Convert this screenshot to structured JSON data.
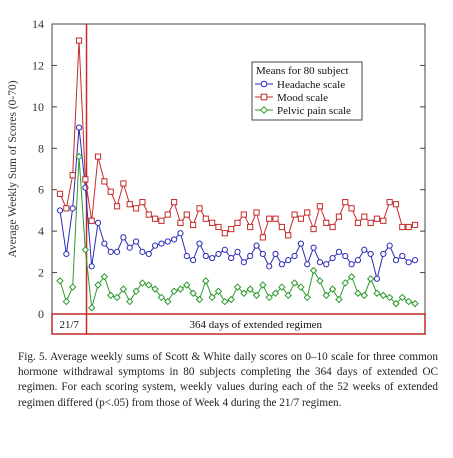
{
  "chart_data": {
    "type": "line",
    "ylabel": "Average Weekly Sum of Scores (0-70)",
    "ylim": [
      0,
      14
    ],
    "yticks": [
      0,
      2,
      4,
      6,
      8,
      10,
      12,
      14
    ],
    "x": [
      0,
      1,
      2,
      3,
      4,
      5,
      6,
      7,
      8,
      9,
      10,
      11,
      12,
      13,
      14,
      15,
      16,
      17,
      18,
      19,
      20,
      21,
      22,
      23,
      24,
      25,
      26,
      27,
      28,
      29,
      30,
      31,
      32,
      33,
      34,
      35,
      36,
      37,
      38,
      39,
      40,
      41,
      42,
      43,
      44,
      45,
      46,
      47,
      48,
      49,
      50,
      51,
      52,
      53,
      54,
      55,
      56
    ],
    "phase_boundary_x": 5,
    "legend": {
      "title": "Means for 80 subject",
      "placement": "top-right"
    },
    "series": [
      {
        "name": "Headache scale",
        "color": "#2b2bb8",
        "marker": "circle",
        "values": [
          5.0,
          2.9,
          5.1,
          9.0,
          6.1,
          2.3,
          4.4,
          3.4,
          3.0,
          3.0,
          3.7,
          3.2,
          3.5,
          3.0,
          2.9,
          3.3,
          3.4,
          3.5,
          3.6,
          3.9,
          2.8,
          2.6,
          3.4,
          2.8,
          2.7,
          2.9,
          3.1,
          2.7,
          3.0,
          2.5,
          2.8,
          3.3,
          2.9,
          2.3,
          2.9,
          2.4,
          2.6,
          2.8,
          3.4,
          2.4,
          3.2,
          2.5,
          2.4,
          2.7,
          3.0,
          2.8,
          2.4,
          2.6,
          3.1,
          2.9,
          1.7,
          2.9,
          3.3,
          2.6,
          2.8,
          2.5,
          2.6
        ]
      },
      {
        "name": "Mood scale",
        "color": "#c42a2a",
        "marker": "square",
        "values": [
          5.8,
          5.1,
          6.7,
          13.2,
          6.5,
          4.5,
          7.6,
          6.4,
          5.9,
          5.2,
          6.3,
          5.3,
          5.1,
          5.4,
          4.8,
          4.6,
          4.5,
          4.8,
          5.4,
          4.4,
          4.8,
          4.3,
          5.1,
          4.6,
          4.4,
          4.2,
          3.9,
          4.1,
          4.4,
          4.8,
          4.2,
          4.9,
          3.7,
          4.6,
          4.6,
          4.2,
          3.8,
          4.8,
          4.6,
          4.9,
          4.1,
          5.2,
          4.4,
          4.2,
          4.7,
          5.4,
          5.1,
          4.4,
          4.7,
          4.4,
          4.6,
          4.5,
          5.4,
          5.3,
          4.2,
          4.2,
          4.3
        ]
      },
      {
        "name": "Pelvic pain scale",
        "color": "#2e9a2e",
        "marker": "diamond",
        "values": [
          1.6,
          0.6,
          1.3,
          7.6,
          3.1,
          0.3,
          1.4,
          1.8,
          0.9,
          0.8,
          1.2,
          0.6,
          1.1,
          1.5,
          1.4,
          1.2,
          0.8,
          0.6,
          1.1,
          1.2,
          1.4,
          1.0,
          0.7,
          1.6,
          0.8,
          1.1,
          0.6,
          0.7,
          1.3,
          1.0,
          1.2,
          0.9,
          1.4,
          0.8,
          1.0,
          1.3,
          0.9,
          1.5,
          1.3,
          0.8,
          2.1,
          1.6,
          0.9,
          1.2,
          0.7,
          1.5,
          1.8,
          1.0,
          0.9,
          1.7,
          1.0,
          0.9,
          0.8,
          0.5,
          0.8,
          0.6,
          0.5
        ]
      }
    ],
    "bottom_labels": [
      "21/7",
      "364 days of extended regimen"
    ],
    "grid": false
  },
  "caption": "Fig. 5. Average weekly sums of Scott & White daily scores on 0–10 scale for three common hormone withdrawal symptoms in 80 subjects completing the 364 days of extended OC regimen. For each scoring system, weekly values during each of the 52 weeks of extended regimen differed (p<.05) from those of Week 4 during the 21/7 regimen."
}
